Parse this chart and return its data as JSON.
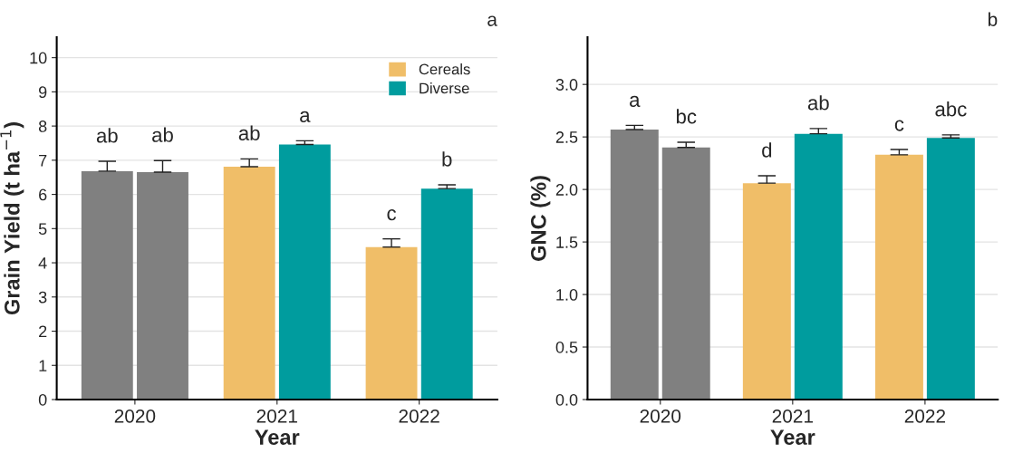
{
  "chart_data": [
    {
      "type": "bar",
      "categories": [
        "2020",
        "2021",
        "2022"
      ],
      "xlabel": "Year",
      "ylabel": "Grain Yield (t ha$^{−1}$)",
      "ylim": [
        0,
        10.6
      ],
      "yticks": [
        0,
        1,
        2,
        3,
        4,
        5,
        6,
        7,
        8,
        9,
        10
      ],
      "grid": "y",
      "legend": "top right",
      "annotations": [
        "a"
      ],
      "series": [
        {
          "name": "Cereals",
          "color": "#f0be68",
          "colors": [
            "#808080",
            "#f0be68",
            "#f0be68"
          ],
          "values": [
            6.68,
            6.81,
            4.46
          ],
          "errors": [
            0.29,
            0.23,
            0.24
          ],
          "value_labels": [
            "ab",
            "ab",
            "c"
          ]
        },
        {
          "name": "Diverse",
          "color": "#009c9e",
          "colors": [
            "#808080",
            "#009c9e",
            "#009c9e"
          ],
          "values": [
            6.65,
            7.46,
            6.17
          ],
          "errors": [
            0.34,
            0.11,
            0.11
          ],
          "value_labels": [
            "ab",
            "a",
            "b"
          ]
        }
      ]
    },
    {
      "type": "bar",
      "categories": [
        "2020",
        "2021",
        "2022"
      ],
      "xlabel": "Year",
      "ylabel": "GNC (%)",
      "ylim": [
        0,
        3.45
      ],
      "yticks": [
        {
          "value": 0,
          "label": "0.0"
        },
        0.5,
        {
          "value": 1,
          "label": "1.0"
        },
        1.5,
        {
          "value": 2,
          "label": "2.0"
        },
        2.5,
        {
          "value": 3,
          "label": "3.0"
        }
      ],
      "grid": "y",
      "annotations": [
        "b"
      ],
      "series": [
        {
          "colors": [
            "#808080",
            "#f0be68",
            "#f0be68"
          ],
          "values": [
            2.57,
            2.06,
            2.33
          ],
          "errors": [
            0.04,
            0.07,
            0.05
          ],
          "value_labels": [
            "a",
            "d",
            "c"
          ]
        },
        {
          "colors": [
            "#808080",
            "#009c9e",
            "#009c9e"
          ],
          "values": [
            2.4,
            2.53,
            2.49
          ],
          "errors": [
            0.05,
            0.05,
            0.03
          ],
          "value_labels": [
            "bc",
            "ab",
            "abc"
          ]
        }
      ]
    }
  ]
}
